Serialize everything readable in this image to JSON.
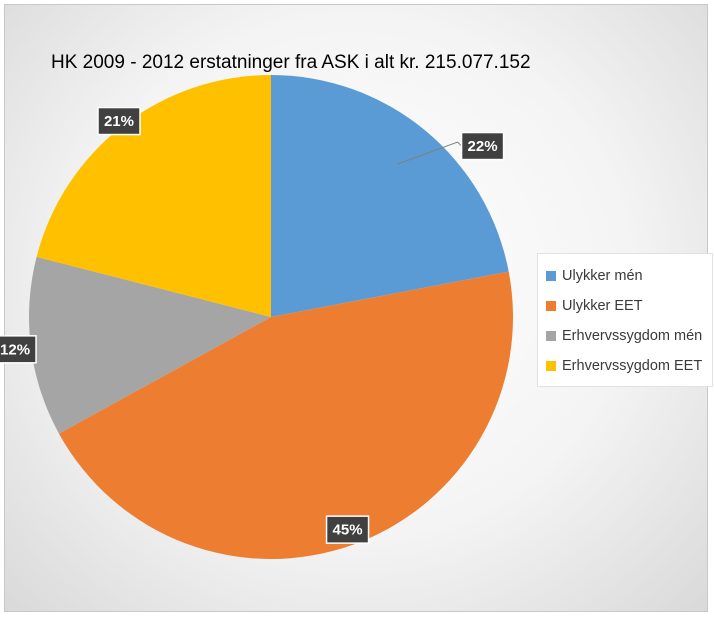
{
  "chart_data": {
    "type": "pie",
    "title": "HK 2009 - 2012 erstatninger fra ASK i alt kr. 215.077.152",
    "categories": [
      "Ulykker mén",
      "Ulykker EET",
      "Erhvervssygdom mén",
      "Erhvervssygdom EET"
    ],
    "values": [
      22,
      45,
      12,
      21
    ],
    "data_labels": [
      "22%",
      "45%",
      "12%",
      "21%"
    ],
    "colors": [
      "#5b9bd5",
      "#ed7d31",
      "#a5a5a5",
      "#ffc000"
    ],
    "legend_position": "right"
  }
}
